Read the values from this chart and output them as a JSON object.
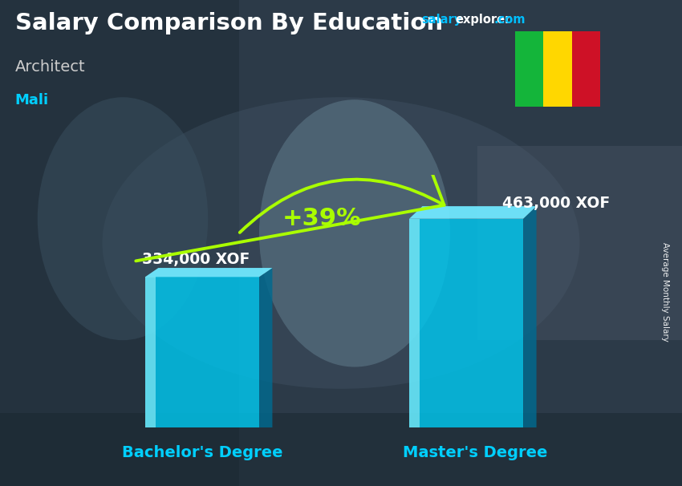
{
  "title": "Salary Comparison By Education",
  "subtitle": "Architect",
  "country": "Mali",
  "categories": [
    "Bachelor's Degree",
    "Master's Degree"
  ],
  "values": [
    334000,
    463000
  ],
  "value_labels": [
    "334,000 XOF",
    "463,000 XOF"
  ],
  "pct_change": "+39%",
  "bar_face_color": "#00C8F0",
  "bar_side_color": "#006A90",
  "bar_top_color": "#70E8FF",
  "bar_highlight_color": "#AAFAFF",
  "bar_alpha": 0.82,
  "bg_dark_color": "#2a3540",
  "bg_overlay_alpha": 0.55,
  "title_color": "#ffffff",
  "subtitle_color": "#cccccc",
  "country_color": "#00CFFF",
  "salary_label_color": "#ffffff",
  "xticklabel_color": "#00CFFF",
  "pct_color": "#aaff00",
  "ylabel_text": "Average Monthly Salary",
  "website_salary_color": "#00BFFF",
  "website_explorer_color": "#ffffff",
  "website_com_color": "#00BFFF",
  "flag_green": "#14B53A",
  "flag_yellow": "#FFD700",
  "flag_red": "#CE1126"
}
